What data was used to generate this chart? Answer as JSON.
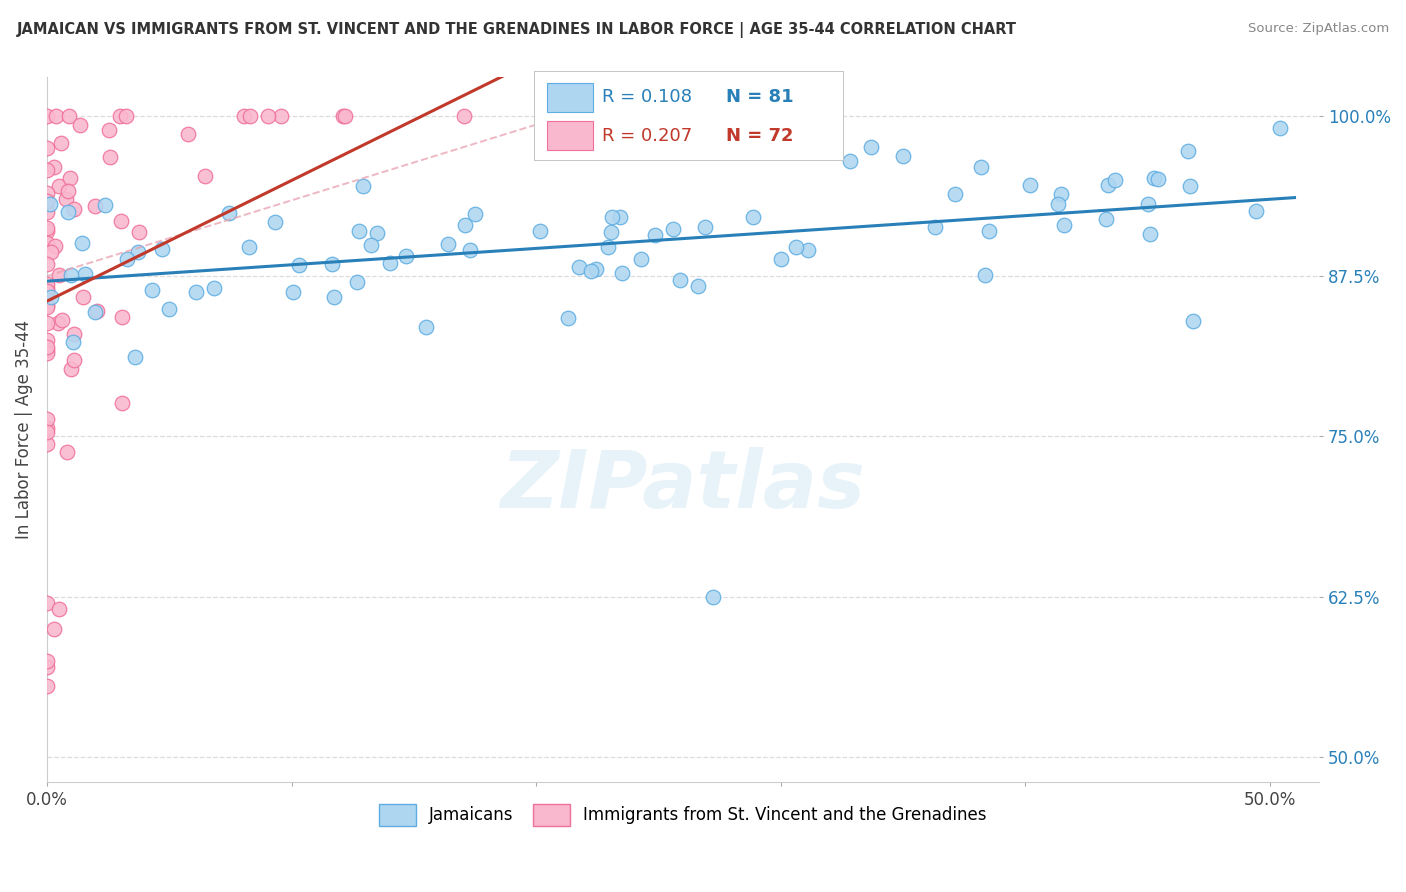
{
  "title": "JAMAICAN VS IMMIGRANTS FROM ST. VINCENT AND THE GRENADINES IN LABOR FORCE | AGE 35-44 CORRELATION CHART",
  "source": "Source: ZipAtlas.com",
  "ylabel": "In Labor Force | Age 35-44",
  "xlim": [
    0.0,
    0.52
  ],
  "ylim": [
    0.48,
    1.03
  ],
  "watermark": "ZIPatlas",
  "bg_color": "#ffffff",
  "grid_color": "#dddddd",
  "scatter_size": 110,
  "blue_color": "#aed6f1",
  "blue_edge": "#5dade2",
  "pink_color": "#f9b8ce",
  "pink_edge": "#f07098",
  "blue_line_color": "#2980b9",
  "pink_line_color": "#c0392b",
  "pink_dash_color": "#e8a0b0",
  "r_blue": "0.108",
  "n_blue": "81",
  "r_pink": "0.207",
  "n_pink": "72",
  "legend_blue": "Jamaicans",
  "legend_pink": "Immigrants from St. Vincent and the Grenadines"
}
